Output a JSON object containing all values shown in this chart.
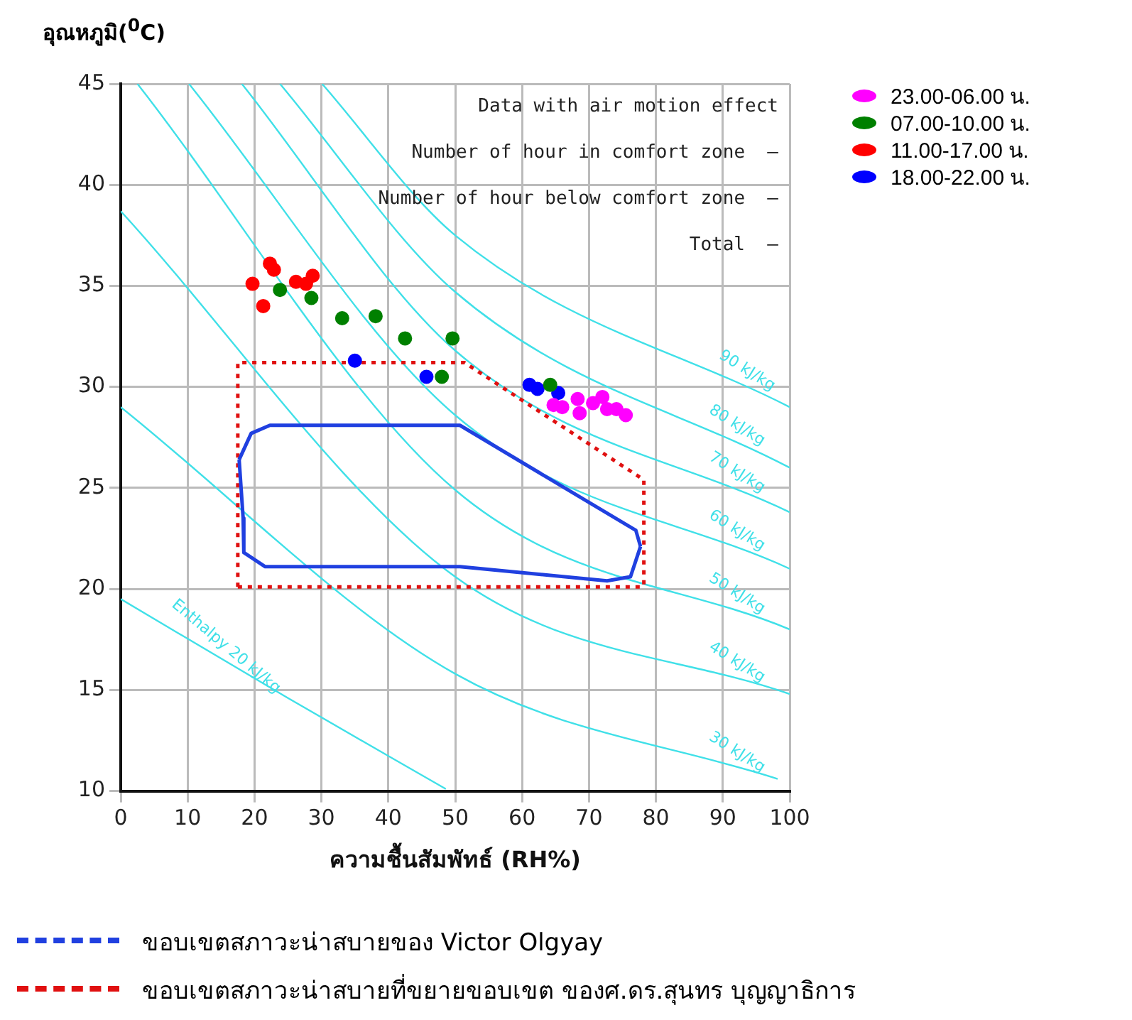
{
  "chart_data": {
    "type": "scatter",
    "xlabel": "ความชื้นสัมพัทธ์ (RH%)",
    "ylabel": "อุณหภูมิ($^{0}$C)",
    "xlim": [
      0,
      100
    ],
    "xticks": [
      0,
      10,
      20,
      30,
      40,
      50,
      60,
      70,
      80,
      90,
      100
    ],
    "ylim": [
      10,
      45
    ],
    "yticks": [
      10,
      15,
      20,
      25,
      30,
      35,
      40,
      45
    ],
    "grid": true,
    "legend": "right",
    "marker": "circle",
    "series": [
      {
        "name": "23.00-06.00 น.",
        "color": "#ff00ff",
        "x": [
          64.7,
          66,
          68.3,
          68.6,
          70.6,
          72,
          72.7,
          74.1,
          75.5
        ],
        "values": [
          29.1,
          29.0,
          29.4,
          28.7,
          29.2,
          29.5,
          28.9,
          28.9,
          28.6
        ]
      },
      {
        "name": "07.00-10.00 น.",
        "color": "#008000",
        "x": [
          23.8,
          28.5,
          33.1,
          38.1,
          42.5,
          49.6,
          48,
          64.2
        ],
        "values": [
          34.8,
          34.4,
          33.4,
          33.5,
          32.4,
          32.4,
          30.5,
          30.1
        ]
      },
      {
        "name": "11.00-17.00 น.",
        "color": "#ff0000",
        "x": [
          19.7,
          22.3,
          22.9,
          21.3,
          26.2,
          27.7,
          28.7
        ],
        "values": [
          35.1,
          36.1,
          35.8,
          34.0,
          35.2,
          35.1,
          35.5
        ]
      },
      {
        "name": "18.00-22.00 น.",
        "color": "#0000ff",
        "x": [
          35,
          45.7,
          61.1,
          62.3,
          65.4
        ],
        "values": [
          31.3,
          30.5,
          30.1,
          29.9,
          29.7
        ]
      },
      {
        "name": "ขอบเขตสภาวะน่าสบายของ Victor Olgyay",
        "type": "line",
        "color": "#2040e0",
        "line_style": "solid",
        "marker": "none",
        "x": [
          17.7,
          19.5,
          22.3,
          50.7,
          77,
          77.7
        ],
        "values": [
          26.4,
          27.7,
          28.1,
          28.1,
          22.9,
          22.1
        ]
      },
      {
        "type": "line",
        "color": "#2040e0",
        "line_style": "solid",
        "marker": "none",
        "x": [
          17.7,
          18.3,
          18.4,
          21.6,
          50.7,
          72.7,
          76.2,
          77.7
        ],
        "values": [
          26.4,
          23.5,
          21.8,
          21.1,
          21.1,
          20.4,
          20.6,
          22.1
        ]
      },
      {
        "name": "ขอบเขตสภาวะน่าสบายที่ขยายขอบเขต ของศ.ดร.สุนทร บุญญาธิการ",
        "type": "line",
        "color": "#e01010",
        "line_style": "dotted",
        "marker": "none",
        "x": [
          17.5,
          17.5,
          51.4,
          78.2,
          78.2
        ],
        "values": [
          20.1,
          31.2,
          31.2,
          25.4,
          20.1
        ]
      },
      {
        "type": "line",
        "color": "#e01010",
        "line_style": "dotted",
        "marker": "none",
        "x": [
          17.5,
          78.2
        ],
        "values": [
          20.1,
          20.1
        ]
      },
      {
        "type": "line",
        "color": "#40e0e8",
        "marker": "none",
        "x": [
          0,
          25,
          48.6
        ],
        "values": [
          19.5,
          14.6,
          10.1
        ]
      },
      {
        "type": "line",
        "color": "#40e0e8",
        "marker": "none",
        "x": [
          0,
          50,
          98.2
        ],
        "values": [
          29,
          15.8,
          10.6
        ]
      },
      {
        "type": "line",
        "color": "#40e0e8",
        "marker": "none",
        "x": [
          0,
          50,
          100
        ],
        "values": [
          38.7,
          20.6,
          14.8
        ]
      },
      {
        "type": "line",
        "color": "#40e0e8",
        "marker": "none",
        "x": [
          2.5,
          50,
          100
        ],
        "values": [
          45,
          24.9,
          18
        ]
      },
      {
        "type": "line",
        "color": "#40e0e8",
        "marker": "none",
        "x": [
          10.2,
          50,
          100
        ],
        "values": [
          45,
          28.6,
          21
        ]
      },
      {
        "type": "line",
        "color": "#40e0e8",
        "marker": "none",
        "x": [
          18.1,
          50,
          100
        ],
        "values": [
          45,
          31.8,
          23.8
        ]
      },
      {
        "type": "line",
        "color": "#40e0e8",
        "marker": "none",
        "x": [
          23.8,
          50,
          100
        ],
        "values": [
          45,
          34.7,
          26
        ]
      },
      {
        "type": "line",
        "color": "#40e0e8",
        "marker": "none",
        "x": [
          30.1,
          50,
          100
        ],
        "values": [
          45,
          37.5,
          29
        ]
      }
    ],
    "annotations": [
      "Data with air motion effect",
      "Number of hour in comfort zone  –",
      "Number of hour below comfort zone  –",
      "Total  –",
      {
        "text": "Enthalpy 20 kJ/kg",
        "x": 14.5,
        "y": 16.66
      },
      {
        "text": "30 kJ/kg",
        "x": 91.1,
        "y": 11.37
      },
      {
        "text": "40 kJ/kg",
        "x": 91.1,
        "y": 15.83
      },
      {
        "text": "50 kJ/kg",
        "x": 91.1,
        "y": 19.23
      },
      {
        "text": "60 kJ/kg",
        "x": 91.1,
        "y": 22.35
      },
      {
        "text": "70 kJ/kg",
        "x": 91.1,
        "y": 25.22
      },
      {
        "text": "80 kJ/kg",
        "x": 91.1,
        "y": 27.55
      },
      {
        "text": "90 kJ/kg",
        "x": 92.6,
        "y": 30.26
      }
    ]
  }
}
